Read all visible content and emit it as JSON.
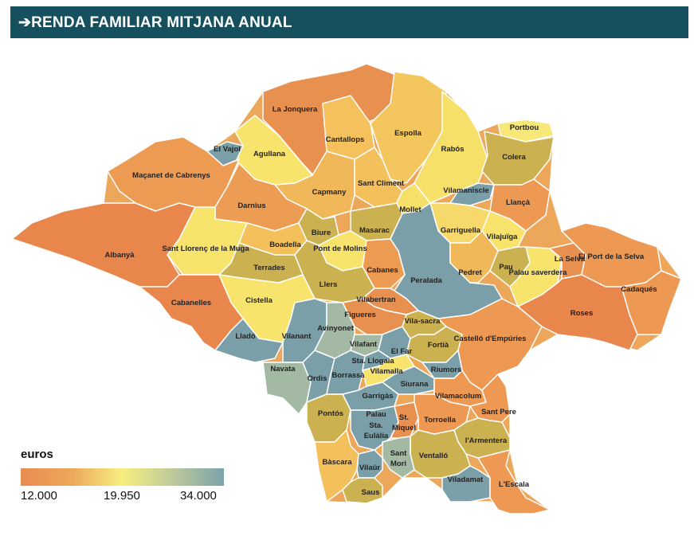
{
  "header": {
    "title": "➔RENDA FAMILIAR MITJANA ANUAL"
  },
  "legend": {
    "unit": "euros",
    "ticks": [
      "12.000",
      "19.950",
      "34.000"
    ],
    "colors": [
      "#e98c52",
      "#eda75a",
      "#f7ef80",
      "#bdc99b",
      "#7ba2ab"
    ]
  },
  "municipalities": [
    {
      "name": "La Jonquera",
      "color": "#e8904f"
    },
    {
      "name": "Portbou",
      "color": "#f8e878"
    },
    {
      "name": "El Vajol",
      "color": "#7b9fa8"
    },
    {
      "name": "Cantallops",
      "color": "#f4c15c"
    },
    {
      "name": "Espolla",
      "color": "#f4c65e"
    },
    {
      "name": "Rabós",
      "color": "#f7e06a"
    },
    {
      "name": "Colera",
      "color": "#cbb14f"
    },
    {
      "name": "Agullana",
      "color": "#f8e46c"
    },
    {
      "name": "Maçanet de Cabrenys",
      "color": "#ed9b53"
    },
    {
      "name": "Sant Climent",
      "color": "#f3c05c"
    },
    {
      "name": "Capmany",
      "color": "#f1b85a"
    },
    {
      "name": "Vilamaniscle",
      "color": "#7b9fa8"
    },
    {
      "name": "Llançà",
      "color": "#ed9953"
    },
    {
      "name": "Darnius",
      "color": "#ed9d53"
    },
    {
      "name": "Mollet",
      "color": "#f7e06a"
    },
    {
      "name": "Biure",
      "color": "#cbb14f"
    },
    {
      "name": "Masarac",
      "color": "#cbb14f"
    },
    {
      "name": "Garriguella",
      "color": "#f7d86a"
    },
    {
      "name": "Vilajuïga",
      "color": "#f8e46c"
    },
    {
      "name": "Albanyà",
      "color": "#e8864c"
    },
    {
      "name": "Sant Llorenç de la Muga",
      "color": "#f8e46c"
    },
    {
      "name": "Boadella",
      "color": "#f3c05c"
    },
    {
      "name": "Pont de Molins",
      "color": "#f8e46c"
    },
    {
      "name": "Terrades",
      "color": "#cbb14f"
    },
    {
      "name": "Cabanes",
      "color": "#ed9b53"
    },
    {
      "name": "Peralada",
      "color": "#7b9fa8"
    },
    {
      "name": "Pedret",
      "color": "#f1b85a"
    },
    {
      "name": "Pau",
      "color": "#cbb14f"
    },
    {
      "name": "Palau saverdera",
      "color": "#f8e46c"
    },
    {
      "name": "La Selva",
      "color": "#e8904f"
    },
    {
      "name": "El Port de la Selva",
      "color": "#ed9953"
    },
    {
      "name": "Cadaqués",
      "color": "#ed9953"
    },
    {
      "name": "Llers",
      "color": "#cbb14f"
    },
    {
      "name": "Cistella",
      "color": "#f8e46c"
    },
    {
      "name": "Cabanelles",
      "color": "#e8864c"
    },
    {
      "name": "Vilabertran",
      "color": "#e8904f"
    },
    {
      "name": "Figueres",
      "color": "#e8904f"
    },
    {
      "name": "Roses",
      "color": "#e8864c"
    },
    {
      "name": "Lladó",
      "color": "#7b9fa8"
    },
    {
      "name": "Vilanant",
      "color": "#7b9fa8"
    },
    {
      "name": "Avinyonet",
      "color": "#a3b9a3"
    },
    {
      "name": "Vilafant",
      "color": "#a3b9a3"
    },
    {
      "name": "El Far",
      "color": "#7b9fa8"
    },
    {
      "name": "Vila-sacra",
      "color": "#cbb14f"
    },
    {
      "name": "Fortià",
      "color": "#cbb14f"
    },
    {
      "name": "Castelló d'Empúries",
      "color": "#ed9953"
    },
    {
      "name": "Navata",
      "color": "#a3b9a3"
    },
    {
      "name": "Ordis",
      "color": "#7b9fa8"
    },
    {
      "name": "Borrassà",
      "color": "#7b9fa8"
    },
    {
      "name": "Sta. Llogaia",
      "color": "#7b9fa8"
    },
    {
      "name": "Vilamalla",
      "color": "#f8e46c"
    },
    {
      "name": "Riumors",
      "color": "#7b9fa8"
    },
    {
      "name": "Siurana",
      "color": "#7b9fa8"
    },
    {
      "name": "Garrigàs",
      "color": "#7b9fa8"
    },
    {
      "name": "Vilamacolum",
      "color": "#ed9953"
    },
    {
      "name": "Pontós",
      "color": "#cbb14f"
    },
    {
      "name": "Palau Sta. Eulàlia",
      "color": "#7b9fa8"
    },
    {
      "name": "St. Miquel",
      "color": "#e8904f"
    },
    {
      "name": "Torroella",
      "color": "#ed9953"
    },
    {
      "name": "Sant Pere",
      "color": "#ed9953"
    },
    {
      "name": "l'Armentera",
      "color": "#cbb14f"
    },
    {
      "name": "Ventalló",
      "color": "#cbb14f"
    },
    {
      "name": "Sant Mori",
      "color": "#a3b9a3"
    },
    {
      "name": "Bàscara",
      "color": "#f3c05c"
    },
    {
      "name": "Vilaür",
      "color": "#7b9fa8"
    },
    {
      "name": "Saus",
      "color": "#cbb14f"
    },
    {
      "name": "Viladamat",
      "color": "#7b9fa8"
    },
    {
      "name": "L'Escala",
      "color": "#ed9953"
    }
  ]
}
